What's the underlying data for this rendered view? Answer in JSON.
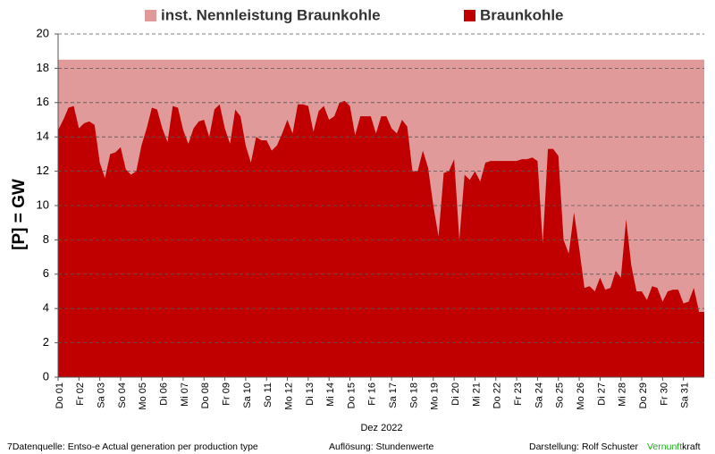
{
  "chart_data": {
    "type": "area",
    "ylabel": "[P]  =  GW",
    "xlabel": "Dez 2022",
    "ylim": [
      0,
      20
    ],
    "yticks": [
      0,
      2,
      4,
      6,
      8,
      10,
      12,
      14,
      16,
      18,
      20
    ],
    "grid": true,
    "xlim": [
      0,
      31
    ],
    "xticks": [
      {
        "value": 0,
        "label": "Do 01"
      },
      {
        "value": 1,
        "label": "Fr 02"
      },
      {
        "value": 2,
        "label": "Sa 03"
      },
      {
        "value": 3,
        "label": "So 04"
      },
      {
        "value": 4,
        "label": "Mo 05"
      },
      {
        "value": 5,
        "label": "Di 06"
      },
      {
        "value": 6,
        "label": "Mi 07"
      },
      {
        "value": 7,
        "label": "Do 08"
      },
      {
        "value": 8,
        "label": "Fr 09"
      },
      {
        "value": 9,
        "label": "Sa 10"
      },
      {
        "value": 10,
        "label": "So 11"
      },
      {
        "value": 11,
        "label": "Mo 12"
      },
      {
        "value": 12,
        "label": "Di 13"
      },
      {
        "value": 13,
        "label": "Mi 14"
      },
      {
        "value": 14,
        "label": "Do 15"
      },
      {
        "value": 15,
        "label": "Fr 16"
      },
      {
        "value": 16,
        "label": "Sa 17"
      },
      {
        "value": 17,
        "label": "So 18"
      },
      {
        "value": 18,
        "label": "Mo 19"
      },
      {
        "value": 19,
        "label": "Di 20"
      },
      {
        "value": 20,
        "label": "Mi 21"
      },
      {
        "value": 21,
        "label": "Do 22"
      },
      {
        "value": 22,
        "label": "Fr 23"
      },
      {
        "value": 23,
        "label": "Sa 24"
      },
      {
        "value": 24,
        "label": "So 25"
      },
      {
        "value": 25,
        "label": "Mo 26"
      },
      {
        "value": 26,
        "label": "Di 27"
      },
      {
        "value": 27,
        "label": "Mi 28"
      },
      {
        "value": 28,
        "label": "Do 29"
      },
      {
        "value": 29,
        "label": "Fr 30"
      },
      {
        "value": 30,
        "label": "Sa 31"
      }
    ],
    "series": [
      {
        "name": "inst. Nennleistung Braunkohle",
        "color": "#e09a9a",
        "x": [
          0,
          31
        ],
        "values": [
          18.5,
          18.5
        ]
      },
      {
        "name": "Braunkohle",
        "color": "#c00000",
        "x": [
          0,
          0.25,
          0.5,
          0.75,
          1,
          1.25,
          1.5,
          1.75,
          2,
          2.25,
          2.5,
          2.75,
          3,
          3.25,
          3.5,
          3.75,
          4,
          4.25,
          4.5,
          4.75,
          5,
          5.25,
          5.5,
          5.75,
          6,
          6.25,
          6.5,
          6.75,
          7,
          7.25,
          7.5,
          7.75,
          8,
          8.25,
          8.5,
          8.75,
          9,
          9.25,
          9.5,
          9.75,
          10,
          10.25,
          10.5,
          10.75,
          11,
          11.25,
          11.5,
          11.75,
          12,
          12.25,
          12.5,
          12.75,
          13,
          13.25,
          13.5,
          13.75,
          14,
          14.25,
          14.5,
          14.75,
          15,
          15.25,
          15.5,
          15.75,
          16,
          16.25,
          16.5,
          16.75,
          17,
          17.25,
          17.5,
          17.75,
          18,
          18.25,
          18.5,
          18.75,
          19,
          19.25,
          19.5,
          19.75,
          20,
          20.25,
          20.5,
          20.75,
          21,
          21.25,
          21.5,
          21.75,
          22,
          22.25,
          22.5,
          22.75,
          23,
          23.25,
          23.5,
          23.75,
          24,
          24.25,
          24.5,
          24.75,
          25,
          25.25,
          25.5,
          25.75,
          26,
          26.25,
          26.5,
          26.75,
          27,
          27.25,
          27.5,
          27.75,
          28,
          28.25,
          28.5,
          28.75,
          29,
          29.25,
          29.5,
          29.75,
          30,
          30.25,
          30.5,
          30.75,
          31
        ],
        "values": [
          14.4,
          15.0,
          15.7,
          15.8,
          14.5,
          14.8,
          14.9,
          14.7,
          12.5,
          11.6,
          13.0,
          13.1,
          13.4,
          12.1,
          11.8,
          12.0,
          13.5,
          14.5,
          15.7,
          15.6,
          14.5,
          13.7,
          15.8,
          15.7,
          14.4,
          13.6,
          14.5,
          14.9,
          15.0,
          14.0,
          15.6,
          15.9,
          14.5,
          13.6,
          15.6,
          15.2,
          13.5,
          12.5,
          14.0,
          13.8,
          13.8,
          13.2,
          13.5,
          14.2,
          15.0,
          14.2,
          15.9,
          15.9,
          15.8,
          14.3,
          15.5,
          15.8,
          15.0,
          15.2,
          16.0,
          16.1,
          15.8,
          14.1,
          15.2,
          15.2,
          15.2,
          14.2,
          15.2,
          15.2,
          14.5,
          14.2,
          15.0,
          14.6,
          12.0,
          12.0,
          13.2,
          12.2,
          10.0,
          8.2,
          11.9,
          12.0,
          12.7,
          8.0,
          11.8,
          11.5,
          12.0,
          11.4,
          12.5,
          12.6,
          12.6,
          12.6,
          12.6,
          12.6,
          12.6,
          12.7,
          12.7,
          12.8,
          12.6,
          7.8,
          13.3,
          13.3,
          12.9,
          8.0,
          7.2,
          9.6,
          7.5,
          5.2,
          5.3,
          5.0,
          5.8,
          5.1,
          5.2,
          6.2,
          5.8,
          9.2,
          6.5,
          5.0,
          5.0,
          4.5,
          5.3,
          5.2,
          4.4,
          5.0,
          5.1,
          5.1,
          4.3,
          4.4,
          5.2,
          3.8,
          3.8
        ]
      }
    ]
  },
  "footer": {
    "source": "7Datenquelle: Entso-e  Actual generation per production type",
    "resolution": "Auflösung: Stundenwerte",
    "author": "Darstellung:  Rolf Schuster",
    "brand_green": "Vernunft",
    "brand_rest": "kraft"
  }
}
